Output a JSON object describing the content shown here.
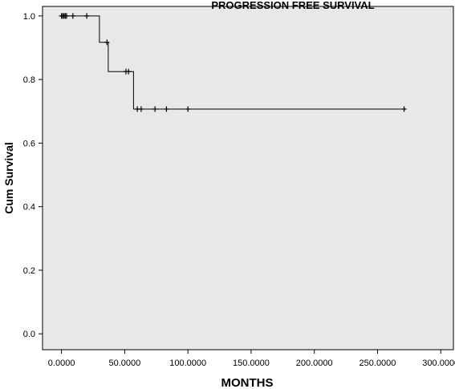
{
  "chart_data": {
    "type": "line",
    "title": "PROGRESSION FREE SURVIVAL",
    "xlabel": "MONTHS",
    "ylabel": "Cum Survival",
    "xlim": [
      -15,
      310
    ],
    "ylim": [
      -0.05,
      1.03
    ],
    "x_ticks": [
      0,
      50,
      100,
      150,
      200,
      250,
      300
    ],
    "x_tick_labels": [
      "0.0000",
      "50.0000",
      "100.0000",
      "150.0000",
      "200.0000",
      "250.0000",
      "300.0000"
    ],
    "y_ticks": [
      0.0,
      0.2,
      0.4,
      0.6,
      0.8,
      1.0
    ],
    "y_tick_labels": [
      "0.0",
      "0.2",
      "0.4",
      "0.6",
      "0.8",
      "1.0"
    ],
    "grid": false,
    "plot_background": "#e8e8e8",
    "line_color": "#000000",
    "series": [
      {
        "step_points": [
          [
            0,
            1.0
          ],
          [
            30,
            1.0
          ],
          [
            30,
            0.917
          ],
          [
            37,
            0.917
          ],
          [
            37,
            0.825
          ],
          [
            57,
            0.825
          ],
          [
            57,
            0.707
          ],
          [
            271,
            0.707
          ]
        ],
        "censored": [
          [
            0,
            1.0
          ],
          [
            1,
            1.0
          ],
          [
            2,
            1.0
          ],
          [
            3,
            1.0
          ],
          [
            4,
            1.0
          ],
          [
            9,
            1.0
          ],
          [
            20,
            1.0
          ],
          [
            36,
            0.917
          ],
          [
            51,
            0.825
          ],
          [
            53,
            0.825
          ],
          [
            60,
            0.707
          ],
          [
            63,
            0.707
          ],
          [
            74,
            0.707
          ],
          [
            83,
            0.707
          ],
          [
            100,
            0.707
          ],
          [
            271,
            0.707
          ]
        ]
      }
    ]
  }
}
